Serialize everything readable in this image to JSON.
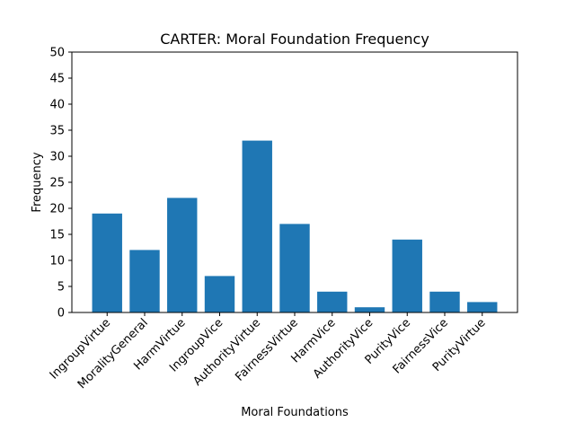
{
  "chart_data": {
    "type": "bar",
    "title": "CARTER: Moral Foundation Frequency",
    "xlabel": "Moral Foundations",
    "ylabel": "Frequency",
    "ylim": [
      0,
      50
    ],
    "yticks": [
      0,
      5,
      10,
      15,
      20,
      25,
      30,
      35,
      40,
      45,
      50
    ],
    "categories": [
      "IngroupVirtue",
      "MoralityGeneral",
      "HarmVirtue",
      "IngroupVice",
      "AuthorityVirtue",
      "FairnessVirtue",
      "HarmVice",
      "AuthorityVice",
      "PurityVice",
      "FairnessVice",
      "PurityVirtue"
    ],
    "values": [
      19,
      12,
      22,
      7,
      33,
      17,
      4,
      1,
      14,
      4,
      2
    ],
    "bar_color": "#1f77b4",
    "grid": false,
    "legend": "none"
  }
}
